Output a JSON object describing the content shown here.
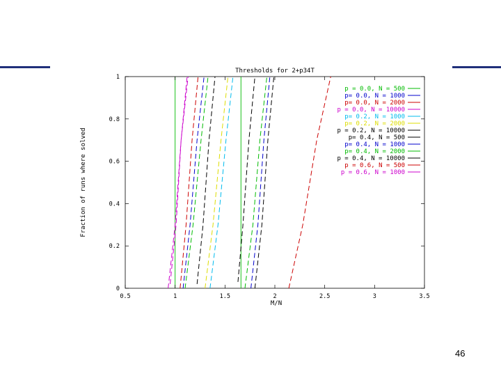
{
  "slide": {
    "number": "46"
  },
  "colors": {
    "rule": "#1f2f7a",
    "green": "#00bb00",
    "blue": "#0000cc",
    "red": "#cc0000",
    "magenta": "#cc00cc",
    "cyan": "#00bbee",
    "yellow": "#dddd00",
    "black": "#000000"
  },
  "chart_data": {
    "type": "line",
    "title": "Thresholds for 2+p34T",
    "xlabel": "M/N",
    "ylabel": "Fraction of runs where solved",
    "xlim": [
      0.5,
      3.5
    ],
    "ylim": [
      0,
      1
    ],
    "x_ticks": [
      "0.5",
      "1",
      "1.5",
      "2",
      "2.5",
      "3",
      "3.5"
    ],
    "y_ticks": [
      "0",
      "0.2",
      "0.4",
      "0.6",
      "0.8",
      "1"
    ],
    "vertical_lines": [
      {
        "x": 1.0,
        "color": "green"
      },
      {
        "x": 1.66,
        "color": "green"
      }
    ],
    "series": [
      {
        "name": "p = 0.0, N = 500",
        "color": "green",
        "x": [
          1.1,
          1.18,
          1.26,
          1.33
        ],
        "y": [
          0.0,
          0.3,
          0.7,
          1.0
        ]
      },
      {
        "name": "p= 0.0, N = 1000",
        "color": "blue",
        "x": [
          1.08,
          1.15,
          1.22,
          1.29
        ],
        "y": [
          0.0,
          0.3,
          0.7,
          1.0
        ]
      },
      {
        "name": "p= 0.0, N = 2000",
        "color": "red",
        "x": [
          1.05,
          1.11,
          1.17,
          1.23
        ],
        "y": [
          0.0,
          0.3,
          0.7,
          1.0
        ]
      },
      {
        "name": "p = 0.0, N = 10000",
        "color": "magenta",
        "x": [
          0.95,
          1.01,
          1.06,
          1.13
        ],
        "y": [
          0.02,
          0.3,
          0.7,
          1.0
        ]
      },
      {
        "name": "p= 0.2, N = 1000",
        "color": "cyan",
        "x": [
          1.35,
          1.43,
          1.51,
          1.58
        ],
        "y": [
          0.0,
          0.3,
          0.7,
          1.0
        ]
      },
      {
        "name": "p= 0.2, N = 2000",
        "color": "yellow",
        "x": [
          1.3,
          1.38,
          1.46,
          1.53
        ],
        "y": [
          0.0,
          0.3,
          0.7,
          1.0
        ]
      },
      {
        "name": "p = 0.2, N = 10000",
        "color": "black",
        "x": [
          1.22,
          1.28,
          1.34,
          1.4
        ],
        "y": [
          0.02,
          0.3,
          0.7,
          1.0
        ]
      },
      {
        "name": "p= 0.4, N = 500",
        "color": "black",
        "x": [
          1.8,
          1.87,
          1.93,
          1.99
        ],
        "y": [
          0.0,
          0.3,
          0.7,
          1.0
        ]
      },
      {
        "name": "p= 0.4, N = 1000",
        "color": "blue",
        "x": [
          1.76,
          1.83,
          1.89,
          1.95
        ],
        "y": [
          0.0,
          0.3,
          0.7,
          1.0
        ]
      },
      {
        "name": "p= 0.4, N = 2000",
        "color": "green",
        "x": [
          1.7,
          1.78,
          1.85,
          1.92
        ],
        "y": [
          0.0,
          0.3,
          0.7,
          1.0
        ]
      },
      {
        "name": "p = 0.4, N = 10000",
        "color": "black",
        "x": [
          1.63,
          1.68,
          1.74,
          1.8
        ],
        "y": [
          0.03,
          0.3,
          0.7,
          1.0
        ]
      },
      {
        "name": "p = 0.6, N = 500",
        "color": "red",
        "x": [
          2.14,
          2.28,
          2.42,
          2.56
        ],
        "y": [
          0.0,
          0.3,
          0.7,
          1.0
        ]
      },
      {
        "name": "p = 0.6, N = 1000",
        "color": "magenta",
        "x": [
          0.93,
          1.0,
          1.06,
          1.12
        ],
        "y": [
          0.0,
          0.3,
          0.7,
          1.0
        ]
      }
    ]
  }
}
